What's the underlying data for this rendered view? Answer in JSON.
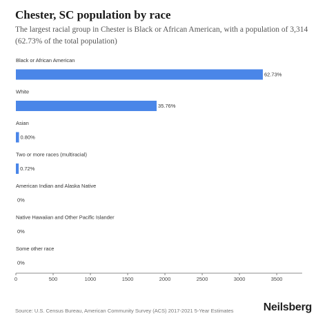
{
  "header": {
    "title": "Chester, SC population by race",
    "subtitle": "The largest racial group in Chester is Black or African American, with a population of 3,314 (62.73% of the total population)"
  },
  "footer": {
    "source": "Source: U.S. Census Bureau, American Community Survey (ACS) 2017-2021 5-Year Estimates",
    "brand": "Neilsberg"
  },
  "chart_data": {
    "type": "bar",
    "orientation": "horizontal",
    "categories": [
      "Black or African American",
      "White",
      "Asian",
      "Two or more races (multiracial)",
      "American Indian and Alaska Native",
      "Native Hawaiian and Other Pacific Islander",
      "Some other race"
    ],
    "values": [
      3314,
      1889,
      42,
      38,
      0,
      0,
      0
    ],
    "labels": [
      "62.73%",
      "35.76%",
      "0.80%",
      "0.72%",
      "0%",
      "0%",
      "0%"
    ],
    "xlim": [
      0,
      3800
    ],
    "xticks": [
      0,
      500,
      1000,
      1500,
      2000,
      2500,
      3000,
      3500
    ],
    "grid": false,
    "bar_color": "#4a86e8"
  }
}
